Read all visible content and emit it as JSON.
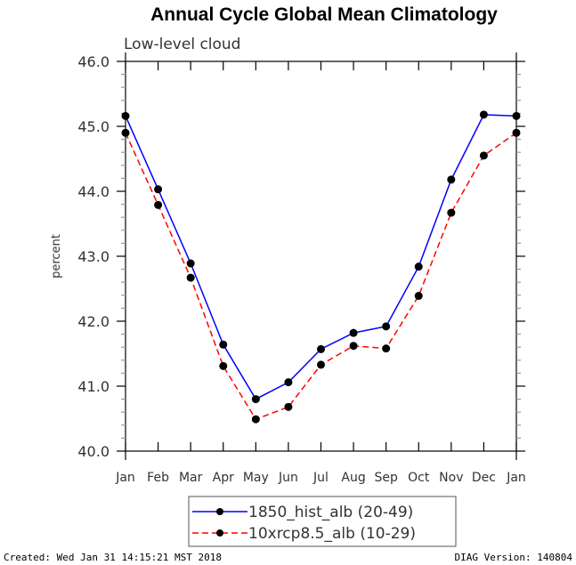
{
  "chart_data": {
    "type": "line",
    "title": "Annual Cycle Global Mean Climatology",
    "subtitle": "Low-level cloud",
    "xlabel": "",
    "ylabel": "percent",
    "ylim": [
      40.0,
      46.0
    ],
    "yticks": [
      "40.0",
      "41.0",
      "42.0",
      "43.0",
      "44.0",
      "45.0",
      "46.0"
    ],
    "ytick_values": [
      40,
      41,
      42,
      43,
      44,
      45,
      46
    ],
    "categories": [
      "Jan",
      "Feb",
      "Mar",
      "Apr",
      "May",
      "Jun",
      "Jul",
      "Aug",
      "Sep",
      "Oct",
      "Nov",
      "Dec",
      "Jan"
    ],
    "grid": false,
    "legend_position": "bottom-center",
    "series": [
      {
        "name": "1850_hist_alb (20-49)",
        "color": "#0000ff",
        "dash": "solid",
        "marker": "filled-circle",
        "values": [
          45.16,
          44.03,
          42.89,
          41.64,
          40.8,
          41.06,
          41.57,
          41.82,
          41.92,
          42.84,
          44.18,
          45.18,
          45.16
        ]
      },
      {
        "name": "10xrcp8.5_alb (10-29)",
        "color": "#ff0000",
        "dash": "dashed",
        "marker": "filled-circle",
        "values": [
          44.9,
          43.79,
          42.67,
          41.31,
          40.49,
          40.68,
          41.33,
          41.62,
          41.58,
          42.39,
          43.67,
          44.55,
          44.9
        ]
      }
    ]
  },
  "footer": {
    "created": "Created: Wed Jan 31 14:15:21 MST 2018",
    "version": "DIAG Version: 140804"
  }
}
